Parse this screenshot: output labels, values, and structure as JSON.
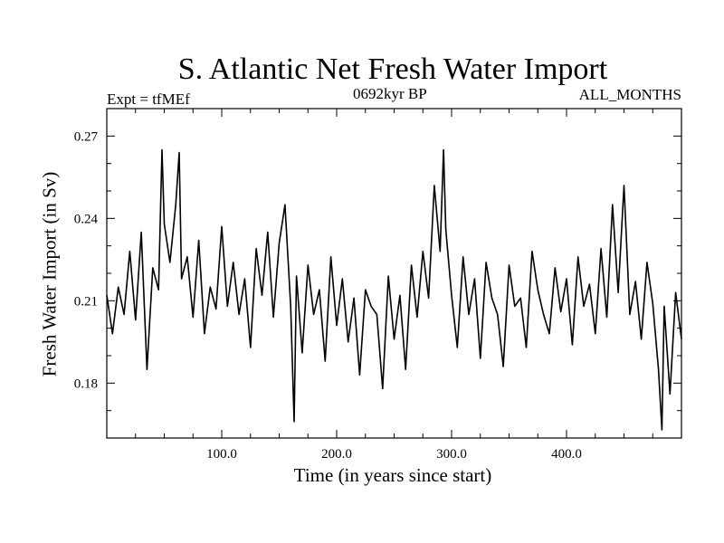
{
  "chart_data": {
    "type": "line",
    "title": "S. Atlantic Net Fresh Water Import",
    "left_note": "Expt = tfMEf",
    "center_note": "0692kyr BP",
    "right_note": "ALL_MONTHS",
    "xlabel": "Time (in years since start)",
    "ylabel": "Fresh Water Import (in Sv)",
    "xlim": [
      0,
      500
    ],
    "ylim": [
      0.16,
      0.28
    ],
    "xticks": [
      100,
      200,
      300,
      400
    ],
    "xtick_labels": [
      "100.0",
      "200.0",
      "300.0",
      "400.0"
    ],
    "yticks": [
      0.18,
      0.21,
      0.24,
      0.27
    ],
    "ytick_labels": [
      "0.18",
      "0.21",
      "0.24",
      "0.27"
    ],
    "grid": false,
    "series": [
      {
        "color": "#000000",
        "x": [
          0,
          5,
          10,
          15,
          20,
          25,
          30,
          35,
          40,
          45,
          48,
          50,
          55,
          60,
          63,
          65,
          70,
          75,
          80,
          85,
          90,
          95,
          100,
          105,
          110,
          115,
          120,
          125,
          130,
          135,
          140,
          145,
          150,
          155,
          160,
          163,
          165,
          170,
          175,
          180,
          185,
          190,
          195,
          200,
          205,
          210,
          215,
          220,
          225,
          230,
          235,
          240,
          245,
          250,
          255,
          260,
          265,
          270,
          275,
          280,
          285,
          290,
          293,
          295,
          300,
          305,
          310,
          315,
          320,
          325,
          330,
          335,
          340,
          345,
          350,
          355,
          360,
          365,
          370,
          375,
          380,
          385,
          390,
          395,
          400,
          405,
          410,
          415,
          420,
          425,
          430,
          435,
          440,
          445,
          450,
          455,
          460,
          465,
          470,
          475,
          480,
          483,
          485,
          490,
          495,
          500
        ],
        "y": [
          0.212,
          0.198,
          0.215,
          0.205,
          0.228,
          0.203,
          0.235,
          0.185,
          0.222,
          0.214,
          0.265,
          0.238,
          0.224,
          0.245,
          0.264,
          0.218,
          0.226,
          0.204,
          0.232,
          0.198,
          0.215,
          0.207,
          0.237,
          0.208,
          0.224,
          0.205,
          0.218,
          0.193,
          0.229,
          0.212,
          0.235,
          0.204,
          0.231,
          0.245,
          0.208,
          0.166,
          0.219,
          0.191,
          0.223,
          0.205,
          0.214,
          0.188,
          0.226,
          0.201,
          0.218,
          0.195,
          0.211,
          0.183,
          0.214,
          0.208,
          0.205,
          0.178,
          0.219,
          0.196,
          0.212,
          0.185,
          0.223,
          0.204,
          0.228,
          0.211,
          0.252,
          0.228,
          0.265,
          0.236,
          0.212,
          0.193,
          0.226,
          0.205,
          0.218,
          0.189,
          0.224,
          0.211,
          0.205,
          0.186,
          0.223,
          0.208,
          0.211,
          0.193,
          0.228,
          0.214,
          0.205,
          0.198,
          0.222,
          0.206,
          0.218,
          0.194,
          0.226,
          0.208,
          0.216,
          0.198,
          0.229,
          0.204,
          0.245,
          0.213,
          0.252,
          0.205,
          0.217,
          0.196,
          0.224,
          0.209,
          0.185,
          0.163,
          0.208,
          0.176,
          0.213,
          0.196
        ]
      }
    ]
  }
}
